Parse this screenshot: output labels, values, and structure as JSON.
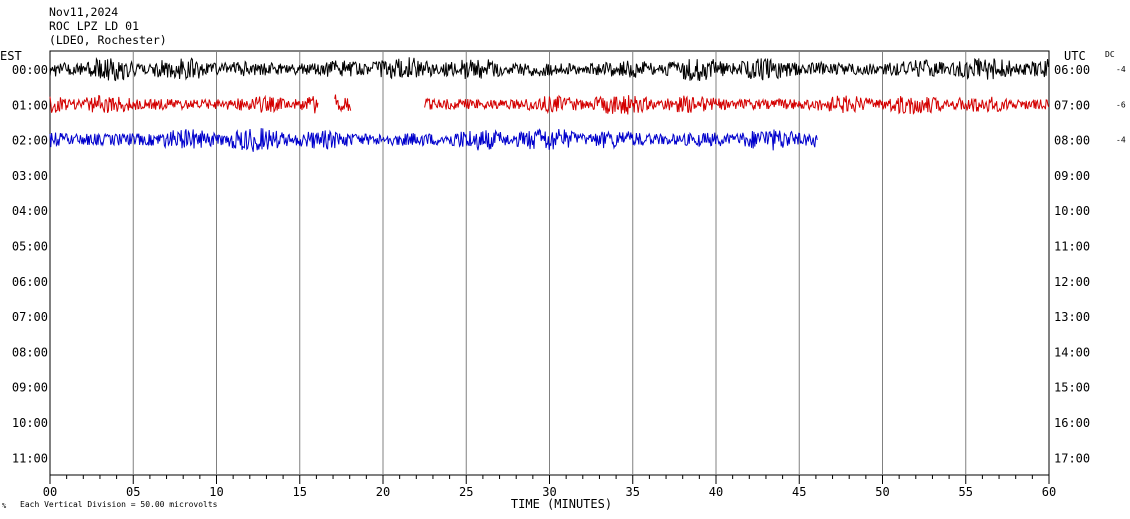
{
  "header": {
    "date": "Nov11,2024",
    "station": "ROC LPZ LD 01",
    "network": "(LDEO, Rochester)"
  },
  "footer": {
    "mark": "%",
    "scale_note": "Each Vertical Division =   50.00 microvolts"
  },
  "chart_data": {
    "type": "line",
    "title": "",
    "xlabel": "TIME (MINUTES)",
    "left_axis_label": "EST",
    "right_axis_label": "UTC",
    "dc_label": "DC",
    "xlim": [
      0,
      60
    ],
    "x_major_ticks": [
      0,
      5,
      10,
      15,
      20,
      25,
      30,
      35,
      40,
      45,
      50,
      55,
      60
    ],
    "x_tick_labels": [
      "00",
      "05",
      "10",
      "15",
      "20",
      "25",
      "30",
      "35",
      "40",
      "45",
      "50",
      "55",
      "60"
    ],
    "x_minor_step": 1,
    "grid_vertical": true,
    "rows_est": [
      "00:00",
      "01:00",
      "02:00",
      "03:00",
      "04:00",
      "05:00",
      "06:00",
      "07:00",
      "08:00",
      "09:00",
      "10:00",
      "11:00"
    ],
    "rows_utc": [
      "06:00",
      "07:00",
      "08:00",
      "09:00",
      "10:00",
      "11:00",
      "12:00",
      "13:00",
      "14:00",
      "15:00",
      "16:00",
      "17:00"
    ],
    "series": [
      {
        "row": 0,
        "color": "#000000",
        "dc_offset": "-4",
        "segments": [
          [
            0,
            60
          ]
        ],
        "amplitude_divisions": 0.35
      },
      {
        "row": 1,
        "color": "#d40000",
        "dc_offset": "-6",
        "segments": [
          [
            0,
            16.1
          ],
          [
            17.1,
            18.1
          ],
          [
            22.5,
            60
          ]
        ],
        "amplitude_divisions": 0.3
      },
      {
        "row": 2,
        "color": "#0000cc",
        "dc_offset": "-4",
        "segments": [
          [
            0,
            46.1
          ]
        ],
        "amplitude_divisions": 0.35
      }
    ]
  }
}
